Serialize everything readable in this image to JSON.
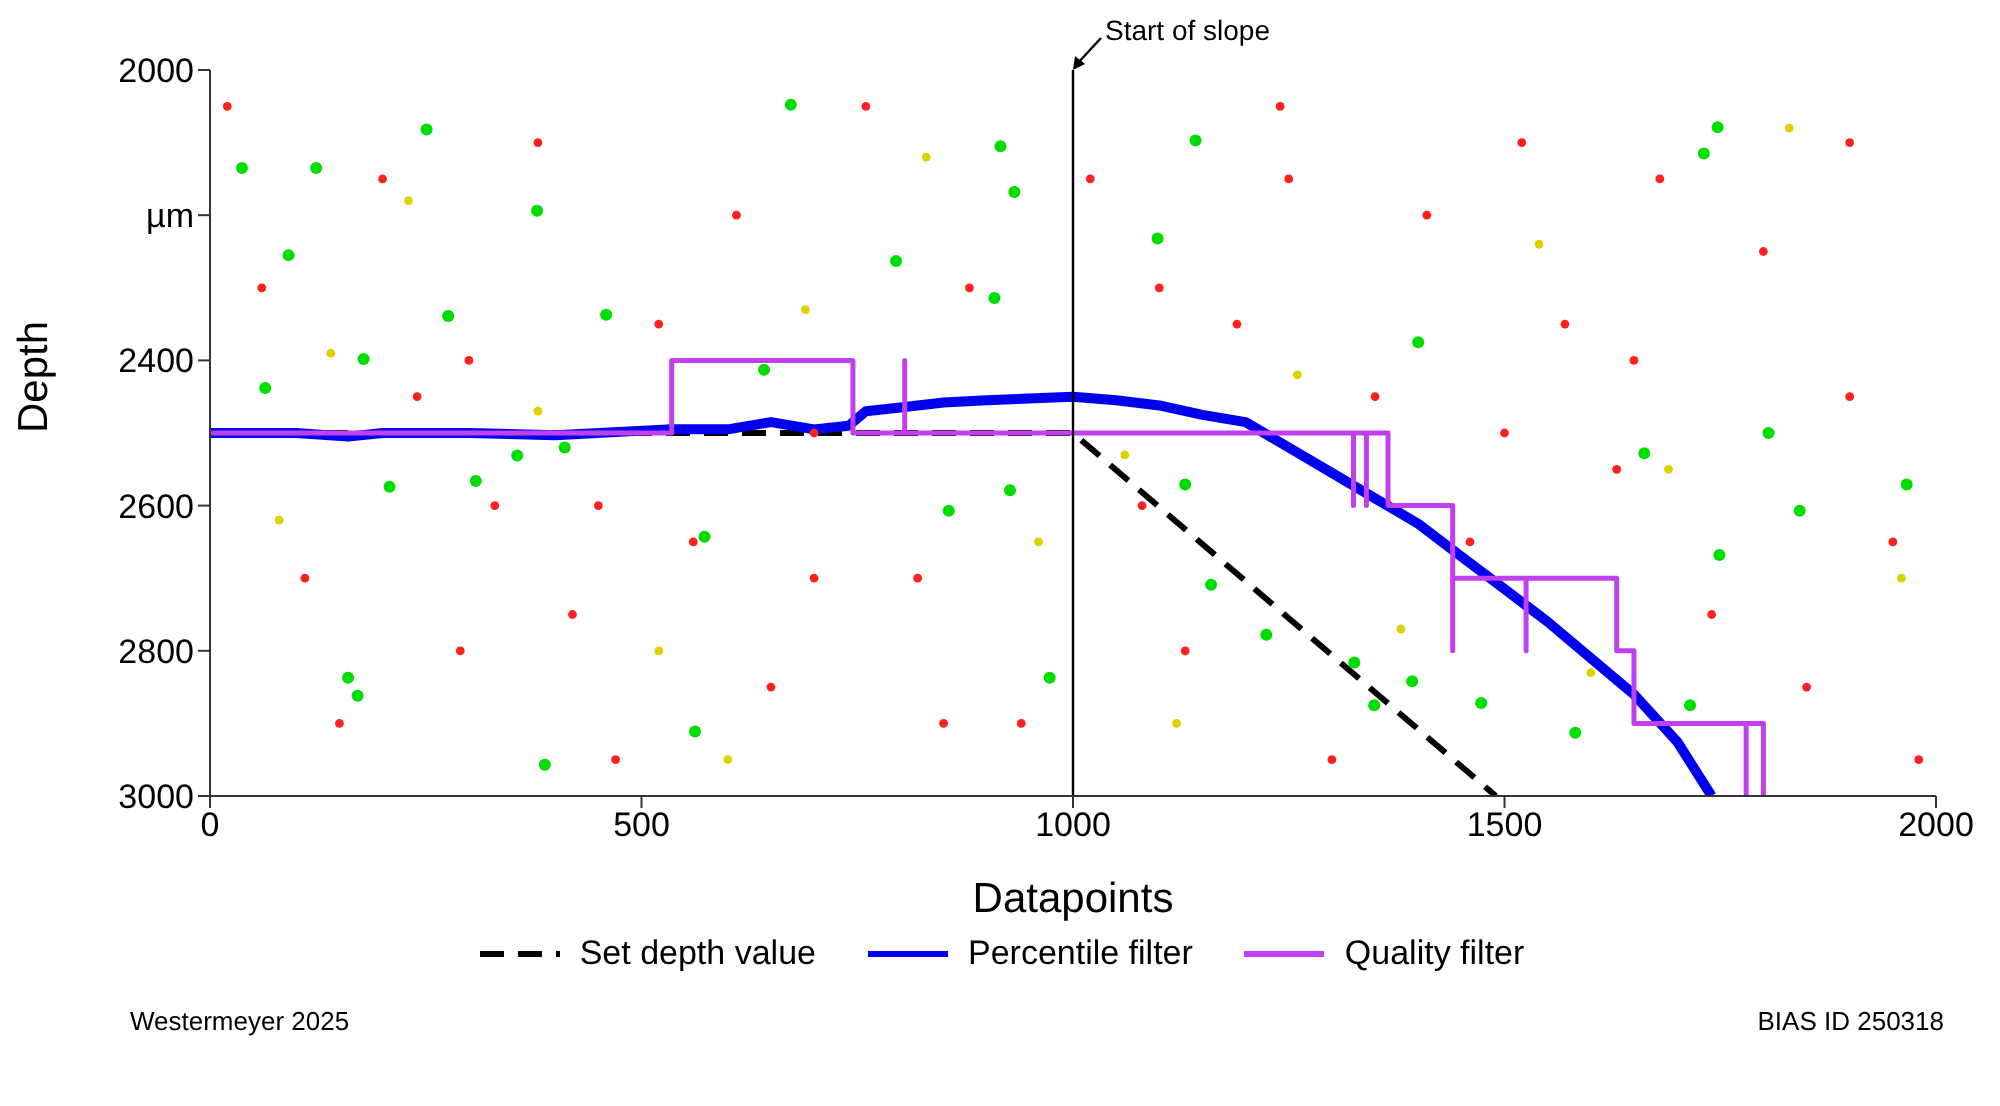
{
  "chart_data": {
    "type": "line",
    "xlabel": "Datapoints",
    "ylabel": "Depth",
    "xlim": [
      0,
      2000
    ],
    "xticks": [
      0,
      500,
      1000,
      1500,
      2000
    ],
    "ylim": [
      3000,
      2000
    ],
    "yticks": [
      2000,
      {
        "value": 2200,
        "label": "µm"
      },
      2400,
      2600,
      2800,
      3000
    ],
    "grid": false,
    "legend": "bottom",
    "ref_lines": [
      {
        "axis": "x",
        "value": 1000,
        "label": "Start of slope",
        "color": "#000000"
      }
    ],
    "annotations": [
      "Westermeyer 2025",
      "BIAS ID 250318"
    ],
    "series": [
      {
        "type": "scatter",
        "marker": "circle",
        "color": "#ff2020",
        "x": [
          20,
          60,
          110,
          150,
          200,
          240,
          290,
          330,
          380,
          420,
          470,
          520,
          560,
          610,
          650,
          700,
          760,
          820,
          880,
          940,
          1020,
          1080,
          1130,
          1190,
          1240,
          1300,
          1350,
          1410,
          1460,
          1520,
          1570,
          1630,
          1680,
          1740,
          1800,
          1850,
          1900,
          1950,
          1980,
          300,
          700,
          1100,
          1500,
          1900,
          450,
          850,
          1250,
          1650
        ],
        "values": [
          2050,
          2300,
          2700,
          2900,
          2150,
          2450,
          2800,
          2600,
          2100,
          2750,
          2950,
          2350,
          2650,
          2200,
          2850,
          2500,
          2050,
          2700,
          2300,
          2900,
          2150,
          2600,
          2800,
          2350,
          2050,
          2950,
          2450,
          2200,
          2650,
          2100,
          2350,
          2550,
          2150,
          2750,
          2250,
          2850,
          2450,
          2650,
          2950,
          2400,
          2700,
          2300,
          2500,
          2100,
          2600,
          2900,
          2150,
          2400
        ]
      },
      {
        "type": "scatter",
        "marker": "circle",
        "color": "#e0d000",
        "x": [
          80,
          230,
          380,
          520,
          690,
          830,
          960,
          1120,
          1260,
          1380,
          1540,
          1690,
          1830,
          1960,
          140,
          600,
          1060,
          1600
        ],
        "values": [
          2620,
          2180,
          2470,
          2800,
          2330,
          2120,
          2650,
          2900,
          2420,
          2770,
          2240,
          2550,
          2080,
          2700,
          2390,
          2950,
          2530,
          2830
        ]
      },
      {
        "type": "scatter",
        "marker": "circle",
        "color": "#00dd00",
        "x": [
          37,
          123,
          251,
          673,
          916,
          932,
          91,
          379,
          276,
          178,
          64,
          795,
          909,
          459,
          208,
          356,
          411,
          308,
          856,
          927,
          573,
          160,
          171,
          562,
          388,
          973,
          642,
          1747,
          1731,
          1142,
          1098,
          1400,
          1662,
          1842,
          1749,
          1130,
          1160,
          1224,
          1326,
          1349,
          1393,
          1473,
          1582,
          1966,
          1806,
          1715
        ],
        "values": [
          2135,
          2135,
          2082,
          2048,
          2105,
          2168,
          2255,
          2194,
          2339,
          2398,
          2438,
          2263,
          2314,
          2337,
          2574,
          2531,
          2520,
          2566,
          2607,
          2579,
          2643,
          2837,
          2862,
          2911,
          2957,
          2837,
          2413,
          2079,
          2115,
          2097,
          2232,
          2375,
          2528,
          2607,
          2668,
          2571,
          2709,
          2778,
          2816,
          2875,
          2842,
          2872,
          2913,
          2571,
          2500,
          2875
        ]
      },
      {
        "name": "Set depth value",
        "color": "#000000",
        "line_style": "dashed",
        "x": [
          0,
          1000,
          1490
        ],
        "values": [
          2500,
          2500,
          3000
        ]
      },
      {
        "name": "Percentile filter",
        "color": "#0000ee",
        "line_style": "solid",
        "x": [
          0,
          100,
          160,
          200,
          300,
          400,
          530,
          600,
          650,
          700,
          740,
          760,
          800,
          850,
          900,
          1000,
          1050,
          1100,
          1150,
          1200,
          1250,
          1300,
          1350,
          1400,
          1450,
          1500,
          1550,
          1600,
          1650,
          1700,
          1740
        ],
        "values": [
          2500,
          2500,
          2505,
          2500,
          2500,
          2503,
          2495,
          2495,
          2485,
          2495,
          2490,
          2470,
          2465,
          2458,
          2455,
          2450,
          2455,
          2462,
          2475,
          2485,
          2520,
          2555,
          2590,
          2625,
          2670,
          2715,
          2760,
          2810,
          2860,
          2925,
          3000
        ]
      },
      {
        "name": "Quality filter",
        "color": "#c040f0",
        "line_style": "solid",
        "x": [
          0,
          535,
          535,
          745,
          745,
          805,
          805,
          805,
          1325,
          1325,
          1325,
          1340,
          1340,
          1340,
          1365,
          1365,
          1440,
          1440,
          1440,
          1525,
          1525,
          1525,
          1630,
          1630,
          1650,
          1650,
          1780,
          1780,
          1780,
          1800,
          1800
        ],
        "values": [
          2500,
          2500,
          2400,
          2400,
          2500,
          2500,
          2400,
          2500,
          2500,
          2600,
          2500,
          2500,
          2600,
          2500,
          2500,
          2600,
          2600,
          2800,
          2700,
          2700,
          2800,
          2700,
          2700,
          2800,
          2800,
          2900,
          2900,
          3000,
          2900,
          2900,
          3000
        ]
      }
    ]
  }
}
